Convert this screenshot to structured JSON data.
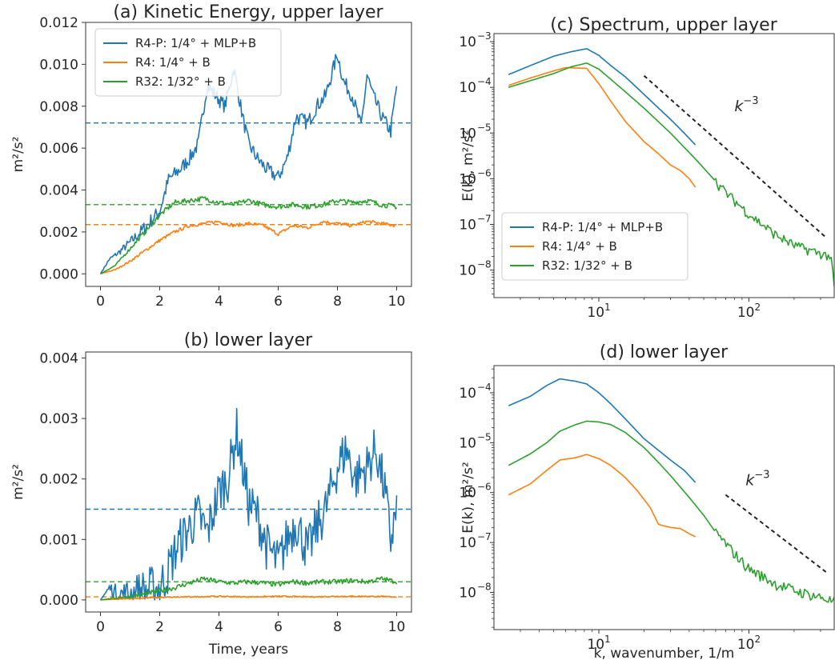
{
  "colors": {
    "blue": "#1f77b4",
    "orange": "#ff7f0e",
    "green": "#2ca02c",
    "ref": "#222222"
  },
  "chart_data": [
    {
      "panel": "a",
      "type": "line",
      "title": "(a)  Kinetic Energy, upper layer",
      "xlabel": "",
      "ylabel": "m²/s²",
      "xlim": [
        -0.5,
        10.5
      ],
      "ylim": [
        -0.0006,
        0.012
      ],
      "xticks": [
        0,
        2,
        4,
        6,
        8,
        10
      ],
      "xtick_labels": [
        "0",
        "2",
        "4",
        "6",
        "8",
        "10"
      ],
      "yticks": [
        0,
        0.002,
        0.004,
        0.006,
        0.008,
        0.01,
        0.012
      ],
      "ytick_labels": [
        "0.000",
        "0.002",
        "0.004",
        "0.006",
        "0.008",
        "0.010",
        "0.012"
      ],
      "legend": {
        "position": "upper-left",
        "entries": [
          "R4-P: 1/4° + MLP+B",
          "R4: 1/4° + B",
          "R32: 1/32° + B"
        ]
      },
      "series": [
        {
          "name": "R4-P: 1/4° + MLP+B",
          "color": "blue",
          "noise": 0.00035,
          "x": [
            0,
            0.3,
            0.6,
            1.0,
            1.5,
            2.0,
            2.3,
            2.7,
            3.0,
            3.3,
            3.6,
            3.9,
            4.2,
            4.5,
            4.8,
            5.0,
            5.3,
            5.6,
            6.0,
            6.3,
            6.6,
            7.0,
            7.3,
            7.6,
            8.0,
            8.2,
            8.5,
            8.8,
            9.0,
            9.2,
            9.5,
            9.8,
            10.0
          ],
          "y": [
            0.0,
            0.0007,
            0.001,
            0.0015,
            0.0022,
            0.003,
            0.0045,
            0.005,
            0.0055,
            0.0062,
            0.009,
            0.0085,
            0.008,
            0.0098,
            0.0075,
            0.0062,
            0.0055,
            0.005,
            0.0046,
            0.0055,
            0.0075,
            0.0072,
            0.008,
            0.0085,
            0.0105,
            0.0092,
            0.0085,
            0.007,
            0.0095,
            0.0085,
            0.0075,
            0.0068,
            0.009
          ]
        },
        {
          "name": "R4: 1/4° + B",
          "color": "orange",
          "noise": 8e-05,
          "x": [
            0,
            0.5,
            1.0,
            1.5,
            2.0,
            2.5,
            3.0,
            3.5,
            4.0,
            4.5,
            5.0,
            5.5,
            6.0,
            6.5,
            7.0,
            7.5,
            8.0,
            8.5,
            9.0,
            9.5,
            10.0
          ],
          "y": [
            0.0,
            0.0002,
            0.0006,
            0.0011,
            0.0016,
            0.002,
            0.0023,
            0.0024,
            0.0025,
            0.0023,
            0.0024,
            0.0023,
            0.0019,
            0.0023,
            0.0022,
            0.0025,
            0.0024,
            0.0023,
            0.0025,
            0.0024,
            0.0023
          ]
        },
        {
          "name": "R32: 1/32° + B",
          "color": "green",
          "noise": 0.00012,
          "x": [
            0,
            0.5,
            1.0,
            1.5,
            2.0,
            2.5,
            3.0,
            3.5,
            4.0,
            4.5,
            5.0,
            5.5,
            6.0,
            6.5,
            7.0,
            7.5,
            8.0,
            8.5,
            9.0,
            9.5,
            10.0
          ],
          "y": [
            0.0,
            0.0004,
            0.0012,
            0.002,
            0.0028,
            0.0034,
            0.0035,
            0.0036,
            0.0034,
            0.0033,
            0.0035,
            0.0033,
            0.0032,
            0.0033,
            0.0032,
            0.0033,
            0.0035,
            0.0034,
            0.0035,
            0.0033,
            0.0032
          ]
        }
      ],
      "hlines": [
        {
          "y": 0.0072,
          "color": "blue"
        },
        {
          "y": 0.0033,
          "color": "green"
        },
        {
          "y": 0.00235,
          "color": "orange"
        }
      ]
    },
    {
      "panel": "b",
      "type": "line",
      "title": "(b)  lower layer",
      "xlabel": "Time, years",
      "ylabel": "m²/s²",
      "xlim": [
        -0.5,
        10.5
      ],
      "ylim": [
        -0.0002,
        0.0041
      ],
      "xticks": [
        0,
        2,
        4,
        6,
        8,
        10
      ],
      "xtick_labels": [
        "0",
        "2",
        "4",
        "6",
        "8",
        "10"
      ],
      "yticks": [
        0,
        0.001,
        0.002,
        0.003,
        0.004
      ],
      "ytick_labels": [
        "0.000",
        "0.001",
        "0.002",
        "0.003",
        "0.004"
      ],
      "series": [
        {
          "name": "R4-P: 1/4° + MLP+B",
          "color": "blue",
          "noise": 0.0004,
          "x": [
            0,
            0.3,
            0.6,
            1.0,
            1.5,
            2.0,
            2.3,
            2.6,
            3.0,
            3.3,
            3.6,
            4.0,
            4.3,
            4.6,
            5.0,
            5.3,
            5.6,
            6.0,
            6.3,
            6.6,
            7.0,
            7.3,
            7.6,
            8.0,
            8.3,
            8.6,
            9.0,
            9.3,
            9.6,
            9.8,
            10.0
          ],
          "y": [
            0.0,
            0.0002,
            0.0001,
            0.0001,
            0.00015,
            0.0002,
            0.0005,
            0.0009,
            0.0012,
            0.0014,
            0.0011,
            0.0018,
            0.002,
            0.0028,
            0.0016,
            0.0014,
            0.0009,
            0.0006,
            0.001,
            0.0013,
            0.0008,
            0.0012,
            0.0015,
            0.0022,
            0.0025,
            0.002,
            0.0022,
            0.0025,
            0.0018,
            0.001,
            0.0015
          ]
        },
        {
          "name": "R4: 1/4° + B",
          "color": "orange",
          "noise": 1e-05,
          "x": [
            0,
            1,
            2,
            3,
            4,
            5,
            6,
            7,
            8,
            9,
            10
          ],
          "y": [
            0.0,
            2e-05,
            4e-05,
            5e-05,
            6e-05,
            5e-05,
            6e-05,
            5e-05,
            6e-05,
            6e-05,
            5e-05
          ]
        },
        {
          "name": "R32: 1/32° + B",
          "color": "green",
          "noise": 4e-05,
          "x": [
            0,
            0.5,
            1.0,
            1.5,
            2.0,
            2.5,
            3.0,
            3.5,
            4.0,
            4.5,
            5.0,
            5.5,
            6.0,
            6.5,
            7.0,
            7.5,
            8.0,
            8.5,
            9.0,
            9.5,
            10.0
          ],
          "y": [
            0.0,
            3e-05,
            6e-05,
            0.0001,
            0.00015,
            0.0002,
            0.00028,
            0.00035,
            0.0003,
            0.00028,
            0.0003,
            0.00028,
            0.00025,
            0.0003,
            0.00028,
            0.0003,
            0.0003,
            0.00032,
            0.0003,
            0.00035,
            0.0003
          ]
        }
      ],
      "hlines": [
        {
          "y": 0.0015,
          "color": "blue"
        },
        {
          "y": 0.0003,
          "color": "green"
        },
        {
          "y": 5e-05,
          "color": "orange"
        }
      ]
    },
    {
      "panel": "c",
      "type": "line",
      "log": true,
      "title": "(c)  Spectrum, upper layer",
      "xlabel": "",
      "ylabel": "E(k), m²/s²",
      "xlim": [
        2.0,
        370
      ],
      "ylim": [
        2.5e-09,
        0.0015
      ],
      "xticks": [
        10,
        100
      ],
      "xtick_base": [
        "10",
        "10"
      ],
      "xtick_exp": [
        "1",
        "2"
      ],
      "yticks": [
        1e-08,
        1e-07,
        1e-06,
        1e-05,
        0.0001,
        0.001
      ],
      "ytick_base": [
        "10",
        "10",
        "10",
        "10",
        "10",
        "10"
      ],
      "ytick_exp": [
        "−8",
        "−7",
        "−6",
        "−5",
        "−4",
        "−3"
      ],
      "legend": {
        "position": "lower-left",
        "entries": [
          "R4-P: 1/4° + MLP+B",
          "R4: 1/4° + B",
          "R32: 1/32° + B"
        ]
      },
      "annotation": {
        "base": "k",
        "exp": "−3",
        "at": [
          80,
          3e-05
        ]
      },
      "refline": {
        "x": [
          20,
          330
        ],
        "y": [
          0.00018,
          5e-08
        ]
      },
      "series": [
        {
          "name": "R4-P: 1/4° + MLP+B",
          "color": "blue",
          "x": [
            2.5,
            3.5,
            5,
            6.5,
            8.3,
            10,
            12,
            15,
            20,
            25,
            30,
            37,
            44
          ],
          "y": [
            0.00019,
            0.0003,
            0.00048,
            0.0006,
            0.0007,
            0.0005,
            0.0003,
            0.00017,
            7e-05,
            3.5e-05,
            2e-05,
            1e-05,
            5.5e-06
          ]
        },
        {
          "name": "R4: 1/4° + B",
          "color": "orange",
          "x": [
            2.5,
            3.5,
            5,
            6,
            8.3,
            10,
            12,
            15,
            20,
            25,
            30,
            35,
            40,
            44
          ],
          "y": [
            0.00011,
            0.00016,
            0.00023,
            0.00027,
            0.00026,
            0.00012,
            5e-05,
            1.8e-05,
            6.5e-06,
            3.5e-06,
            2e-06,
            1.5e-06,
            1e-06,
            6.5e-07
          ]
        },
        {
          "name": "R32: 1/32° + B",
          "color": "green",
          "x": [
            2.5,
            3.5,
            5,
            6.5,
            8.3,
            10,
            12,
            15,
            20,
            30,
            45,
            70,
            100,
            150,
            200,
            300,
            350,
            370
          ],
          "y": [
            0.0001,
            0.00014,
            0.0002,
            0.00028,
            0.00034,
            0.00025,
            0.00015,
            8e-05,
            3.5e-05,
            1e-05,
            2.5e-06,
            5e-07,
            1.7e-07,
            6e-08,
            3.5e-08,
            2.3e-08,
            2e-08,
            4.5e-09
          ]
        }
      ]
    },
    {
      "panel": "d",
      "type": "line",
      "log": true,
      "title": "(d)  lower layer",
      "xlabel": "k, wavenumber, 1/m",
      "ylabel": "E(k), m²/s²",
      "xlim": [
        2.0,
        370
      ],
      "ylim": [
        1.8e-09,
        0.00035
      ],
      "xticks": [
        10,
        100
      ],
      "xtick_base": [
        "10",
        "10"
      ],
      "xtick_exp": [
        "1",
        "2"
      ],
      "yticks": [
        1e-08,
        1e-07,
        1e-06,
        1e-05,
        0.0001
      ],
      "ytick_base": [
        "10",
        "10",
        "10",
        "10",
        "10"
      ],
      "ytick_exp": [
        "−8",
        "−7",
        "−6",
        "−5",
        "−4"
      ],
      "annotation": {
        "base": "k",
        "exp": "−3",
        "at": [
          95,
          1.4e-06
        ]
      },
      "refline": {
        "x": [
          70,
          330
        ],
        "y": [
          9e-07,
          2.5e-08
        ]
      },
      "series": [
        {
          "name": "R4-P: 1/4° + MLP+B",
          "color": "blue",
          "x": [
            2.5,
            3.5,
            4.5,
            5.5,
            7,
            8.3,
            10,
            12,
            15,
            20,
            25,
            30,
            37,
            44
          ],
          "y": [
            5.5e-05,
            8.5e-05,
            0.00014,
            0.00019,
            0.00017,
            0.00015,
            0.0001,
            6e-05,
            3e-05,
            1.2e-05,
            7e-06,
            4.5e-06,
            2.8e-06,
            1.6e-06
          ]
        },
        {
          "name": "R4: 1/4° + B",
          "color": "orange",
          "x": [
            2.5,
            3.5,
            4.5,
            5.5,
            7,
            8.3,
            10,
            12,
            15,
            18,
            22,
            25,
            30,
            35,
            40,
            44
          ],
          "y": [
            9e-07,
            1.5e-06,
            2.8e-06,
            4.5e-06,
            5e-06,
            5.8e-06,
            4.8e-06,
            3.5e-06,
            2e-06,
            1.1e-06,
            5e-07,
            2.3e-07,
            2e-07,
            1.9e-07,
            1.5e-07,
            1.3e-07
          ]
        },
        {
          "name": "R32: 1/32° + B",
          "color": "green",
          "x": [
            2.5,
            3.5,
            4.5,
            5.5,
            7,
            8.3,
            10,
            12,
            15,
            20,
            25,
            30,
            40,
            50,
            60,
            80,
            100,
            150,
            200,
            300,
            370
          ],
          "y": [
            3.5e-06,
            6e-06,
            1e-05,
            1.7e-05,
            2.3e-05,
            2.7e-05,
            2.6e-05,
            2.3e-05,
            1.6e-05,
            8e-06,
            4e-06,
            2.2e-06,
            8e-07,
            3.5e-07,
            1.6e-07,
            6e-08,
            3e-08,
            1.5e-08,
            1.1e-08,
            8e-09,
            6.5e-09
          ]
        }
      ]
    }
  ]
}
